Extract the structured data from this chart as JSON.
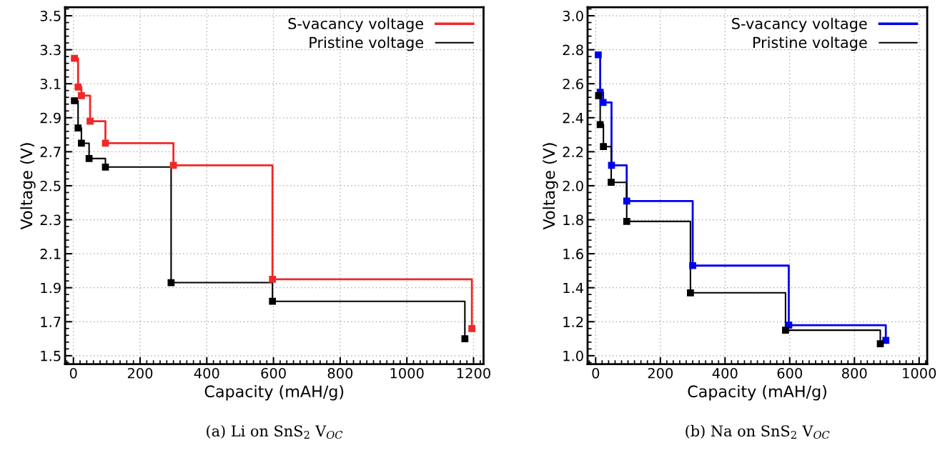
{
  "chart_data": [
    {
      "type": "step",
      "xlabel": "Capacity (mAH/g)",
      "ylabel": "Voltage (V)",
      "xlim": [
        -25,
        1230
      ],
      "ylim": [
        1.45,
        3.55
      ],
      "xticks": [
        0,
        200,
        400,
        600,
        800,
        1000,
        1200
      ],
      "yticks": [
        1.5,
        1.7,
        1.9,
        2.1,
        2.3,
        2.5,
        2.7,
        2.9,
        3.1,
        3.3,
        3.5
      ],
      "grid": true,
      "legend": "top right",
      "marker": "square",
      "line_style": "solid",
      "annotations": [
        "(a) Li on SnS$_{2}$ V$_{OC}$"
      ],
      "series": [
        {
          "name": "S-vacancy voltage",
          "color": "#f02828",
          "x": [
            3,
            14,
            24,
            50,
            96,
            300,
            597,
            1195
          ],
          "values": [
            3.25,
            3.08,
            3.03,
            2.88,
            2.75,
            2.62,
            1.95,
            1.66
          ]
        },
        {
          "name": "Pristine voltage",
          "color": "#000000",
          "x": [
            3,
            14,
            24,
            47,
            96,
            293,
            597,
            1174
          ],
          "values": [
            3.0,
            2.84,
            2.75,
            2.66,
            2.61,
            1.93,
            1.82,
            1.6
          ]
        }
      ]
    },
    {
      "type": "step",
      "xlabel": "Capacity (mAH/g)",
      "ylabel": "Voltage (V)",
      "xlim": [
        -25,
        1025
      ],
      "ylim": [
        0.95,
        3.05
      ],
      "xticks": [
        0,
        200,
        400,
        600,
        800,
        1000
      ],
      "yticks": [
        {
          "value": 1,
          "label": "1.0"
        },
        1.2,
        1.4,
        1.6,
        1.8,
        {
          "value": 2,
          "label": "2.0"
        },
        2.2,
        2.4,
        2.6,
        2.8,
        {
          "value": 3,
          "label": "3.0"
        }
      ],
      "grid": true,
      "legend": "top right",
      "marker": "square",
      "line_style": "solid",
      "annotations": [
        "(b) Na on SnS$_{2}$ V$_{OC}$"
      ],
      "series": [
        {
          "name": "S-vacancy voltage",
          "color": "#0000f0",
          "x": [
            8,
            14,
            23,
            49,
            96,
            300,
            597,
            897
          ],
          "values": [
            2.77,
            2.55,
            2.49,
            2.12,
            1.91,
            1.53,
            1.18,
            1.09
          ]
        },
        {
          "name": "Pristine voltage",
          "color": "#000000",
          "x": [
            9,
            14,
            24,
            48,
            96,
            293,
            587,
            880
          ],
          "values": [
            2.53,
            2.36,
            2.23,
            2.02,
            1.79,
            1.37,
            1.15,
            1.07
          ]
        }
      ]
    }
  ]
}
